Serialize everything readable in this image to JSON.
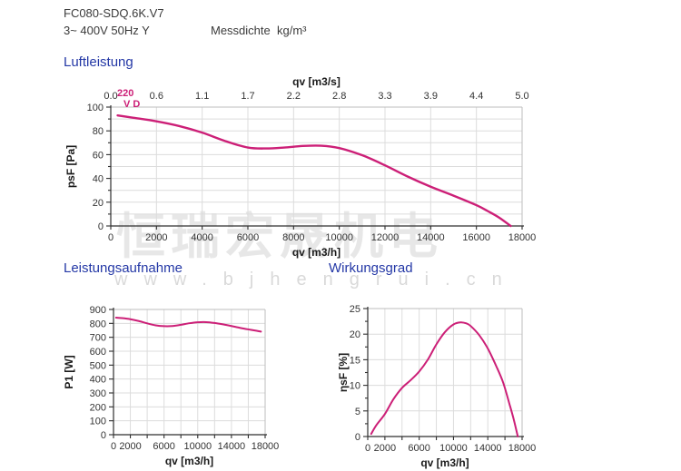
{
  "header": {
    "model": "FC080-SDQ.6K.V7",
    "power_spec": "3~ 400V 50Hz Y",
    "density_label": "Messdichte  kg/m³"
  },
  "sections": {
    "airflow_title": "Luftleistung",
    "power_title": "Leistungsaufnahme",
    "efficiency_title": "Wirkungsgrad"
  },
  "watermark": {
    "cjk_text": "恒瑞宏晟机电",
    "url_text": "www.bjhengrui.cn"
  },
  "main_curve_label": {
    "line1": "220",
    "line2": "V D"
  },
  "colors": {
    "curve": "#cc1f77",
    "heading": "#2438a6",
    "axis": "#2f2f2f",
    "grid": "#dcdcdc",
    "frame": "#bdbdbd",
    "tick_text": "#333333",
    "watermark": "#bdbdbd"
  },
  "chart_data": [
    {
      "id": "airflow",
      "type": "line",
      "title": "Luftleistung",
      "xlabel": "qv [m3/h]",
      "ylabel": "psF [Pa]",
      "x2label": "qv [m3/s]",
      "xlim": [
        0,
        18000
      ],
      "ylim": [
        0,
        100
      ],
      "x_tick_step": 2000,
      "x_labeled_ticks": [
        0,
        2000,
        4000,
        6000,
        8000,
        10000,
        12000,
        14000,
        16000,
        18000
      ],
      "x2_tick_labels": [
        "0.0",
        "0.6",
        "1.1",
        "1.7",
        "2.2",
        "2.8",
        "3.3",
        "3.9",
        "4.4",
        "5.0"
      ],
      "y_labeled_ticks": [
        0,
        20,
        40,
        60,
        80,
        100
      ],
      "y_minor_step": 10,
      "y_grid_step": 10,
      "grid": true,
      "legend": "none",
      "curve_label": "220 V D",
      "x": [
        300,
        1000,
        2000,
        3000,
        4000,
        5000,
        6000,
        6800,
        7600,
        8400,
        9200,
        10000,
        11000,
        12000,
        13000,
        14000,
        15000,
        16000,
        16500,
        17000,
        17500
      ],
      "y": [
        93,
        91,
        88,
        84,
        78.5,
        71.5,
        66,
        65.2,
        66,
        67.3,
        67.5,
        65.5,
        59.5,
        51,
        41.5,
        33,
        25.5,
        17.5,
        12.5,
        7,
        0
      ]
    },
    {
      "id": "power",
      "type": "line",
      "title": "Leistungsaufnahme",
      "xlabel": "qv [m3/h]",
      "ylabel": "P1 [W]",
      "xlim": [
        0,
        18000
      ],
      "ylim": [
        0,
        900
      ],
      "x_tick_step": 2000,
      "x_labeled_ticks": [
        0,
        2000,
        6000,
        10000,
        14000,
        18000
      ],
      "y_labeled_ticks": [
        0,
        100,
        200,
        300,
        400,
        500,
        600,
        700,
        800,
        900
      ],
      "y_minor_step": null,
      "y_grid_step": 100,
      "grid": true,
      "legend": "none",
      "x": [
        300,
        1000,
        2000,
        3000,
        4000,
        5000,
        6000,
        7000,
        8000,
        9000,
        10000,
        11000,
        12000,
        13000,
        14000,
        15000,
        16000,
        17000,
        17500
      ],
      "y": [
        841,
        838,
        830,
        817,
        800,
        786,
        780,
        781,
        790,
        801,
        808,
        809,
        803,
        793,
        781,
        768,
        757,
        747,
        741
      ]
    },
    {
      "id": "efficiency",
      "type": "line",
      "title": "Wirkungsgrad",
      "xlabel": "qv [m3/h]",
      "ylabel": "ηsF [%]",
      "xlim": [
        0,
        18000
      ],
      "ylim": [
        0,
        25
      ],
      "x_tick_step": 2000,
      "x_labeled_ticks": [
        0,
        2000,
        6000,
        10000,
        14000,
        18000
      ],
      "y_labeled_ticks": [
        0,
        5,
        10,
        15,
        20,
        25
      ],
      "y_minor_step": 2.5,
      "y_grid_step": 5,
      "grid": true,
      "legend": "none",
      "x": [
        400,
        1000,
        2000,
        3000,
        4000,
        5000,
        6000,
        7000,
        8000,
        9000,
        10000,
        10800,
        11500,
        12000,
        13000,
        14000,
        15000,
        15800,
        16500,
        17000,
        17500
      ],
      "y": [
        0.5,
        2.2,
        4.4,
        7.3,
        9.5,
        11,
        12.7,
        15,
        18,
        20.4,
        21.9,
        22.3,
        22.1,
        21.6,
        19.8,
        17.2,
        13.7,
        10.5,
        6.5,
        3.5,
        0
      ]
    }
  ]
}
